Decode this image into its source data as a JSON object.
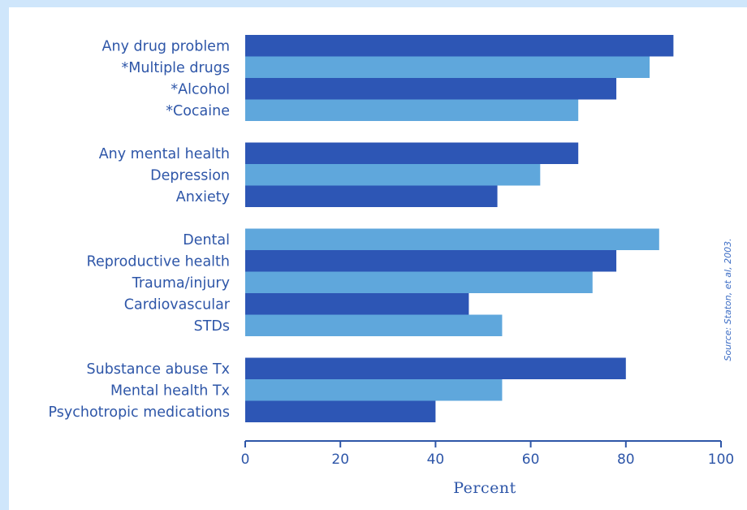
{
  "chart_data": {
    "type": "bar",
    "orientation": "horizontal",
    "xlabel": "Percent",
    "xlim": [
      0,
      100
    ],
    "xticks": [
      0,
      20,
      40,
      60,
      80,
      100
    ],
    "source": "Source: Staton, et al, 2003.",
    "colors": {
      "dark": "#2d56b5",
      "light": "#5fa7dc",
      "axis": "#2e56a8"
    },
    "groups": [
      {
        "items": [
          {
            "label": "Any drug problem",
            "value": 90,
            "shade": "dark"
          },
          {
            "label": "*Multiple drugs",
            "value": 85,
            "shade": "light"
          },
          {
            "label": "*Alcohol",
            "value": 78,
            "shade": "dark"
          },
          {
            "label": "*Cocaine",
            "value": 70,
            "shade": "light"
          }
        ]
      },
      {
        "items": [
          {
            "label": "Any mental health",
            "value": 70,
            "shade": "dark"
          },
          {
            "label": "Depression",
            "value": 62,
            "shade": "light"
          },
          {
            "label": "Anxiety",
            "value": 53,
            "shade": "dark"
          }
        ]
      },
      {
        "items": [
          {
            "label": "Dental",
            "value": 87,
            "shade": "light"
          },
          {
            "label": "Reproductive health",
            "value": 78,
            "shade": "dark"
          },
          {
            "label": "Trauma/injury",
            "value": 73,
            "shade": "light"
          },
          {
            "label": "Cardiovascular",
            "value": 47,
            "shade": "dark"
          },
          {
            "label": "STDs",
            "value": 54,
            "shade": "light"
          }
        ]
      },
      {
        "items": [
          {
            "label": "Substance abuse Tx",
            "value": 80,
            "shade": "dark"
          },
          {
            "label": "Mental health Tx",
            "value": 54,
            "shade": "light"
          },
          {
            "label": "Psychotropic medications",
            "value": 40,
            "shade": "dark"
          }
        ]
      }
    ]
  }
}
